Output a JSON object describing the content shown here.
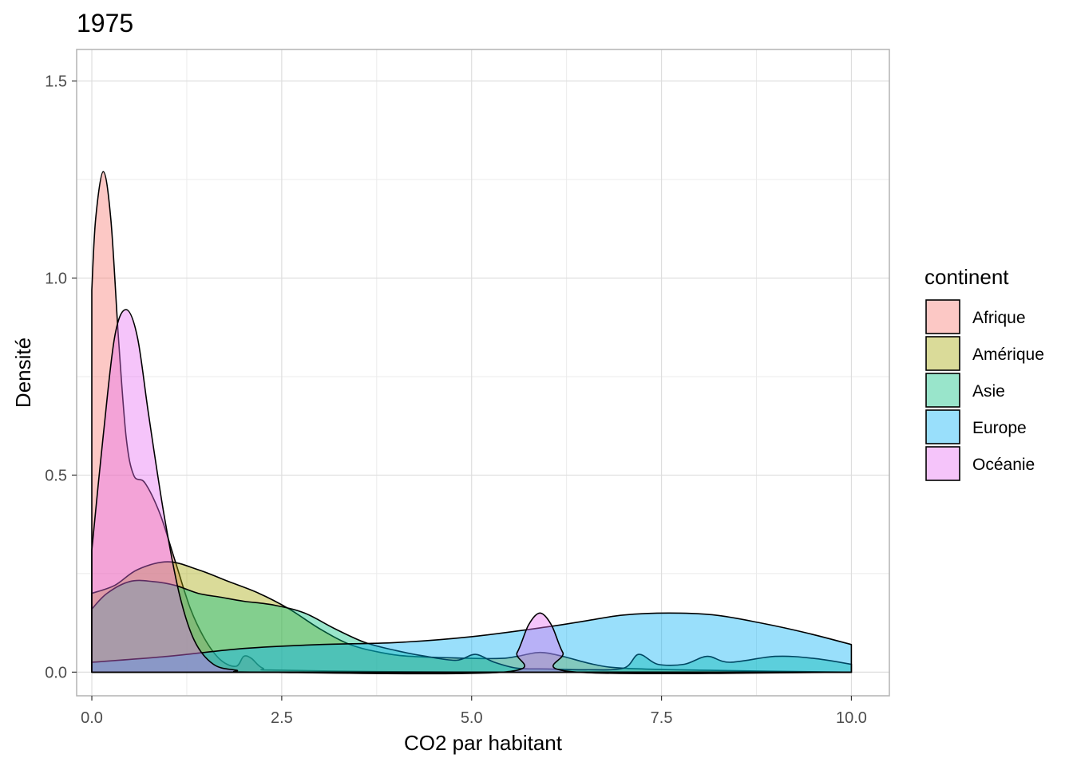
{
  "chart_data": {
    "type": "area",
    "subtype": "density",
    "title": "1975",
    "xlabel": "CO2 par habitant",
    "ylabel": "Densité",
    "xlim": [
      -0.2,
      10.5
    ],
    "ylim": [
      -0.06,
      1.58
    ],
    "x_ticks": [
      0,
      2.5,
      5,
      7.5,
      10
    ],
    "x_tick_labels": [
      "0.0",
      "2.5",
      "5.0",
      "7.5",
      "10.0"
    ],
    "y_ticks": [
      0,
      0.5,
      1,
      1.5
    ],
    "y_tick_labels": [
      "0.0",
      "0.5",
      "1.0",
      "1.5"
    ],
    "grid": true,
    "legend": {
      "title": "continent",
      "position": "right"
    },
    "series": [
      {
        "name": "Afrique",
        "color": "#F8766D",
        "points": [
          [
            0,
            0.97
          ],
          [
            0.05,
            1.15
          ],
          [
            0.15,
            1.27
          ],
          [
            0.25,
            1.15
          ],
          [
            0.35,
            0.85
          ],
          [
            0.45,
            0.6
          ],
          [
            0.55,
            0.5
          ],
          [
            0.7,
            0.48
          ],
          [
            0.9,
            0.4
          ],
          [
            1.1,
            0.28
          ],
          [
            1.3,
            0.16
          ],
          [
            1.5,
            0.08
          ],
          [
            1.7,
            0.03
          ],
          [
            1.9,
            0.015
          ],
          [
            2.0,
            0.04
          ],
          [
            2.1,
            0.035
          ],
          [
            2.25,
            0.01
          ],
          [
            2.5,
            0.005
          ],
          [
            5.0,
            0.0
          ],
          [
            10.0,
            0.0
          ]
        ]
      },
      {
        "name": "Amérique",
        "color": "#A3A500",
        "points": [
          [
            0,
            0.2
          ],
          [
            0.3,
            0.22
          ],
          [
            0.6,
            0.26
          ],
          [
            1.0,
            0.28
          ],
          [
            1.4,
            0.26
          ],
          [
            1.8,
            0.23
          ],
          [
            2.2,
            0.2
          ],
          [
            2.6,
            0.16
          ],
          [
            3.0,
            0.11
          ],
          [
            3.4,
            0.07
          ],
          [
            3.8,
            0.05
          ],
          [
            4.2,
            0.04
          ],
          [
            5.0,
            0.035
          ],
          [
            5.4,
            0.035
          ],
          [
            5.6,
            0.04
          ],
          [
            5.9,
            0.05
          ],
          [
            6.2,
            0.04
          ],
          [
            6.6,
            0.02
          ],
          [
            7.0,
            0.01
          ],
          [
            8.0,
            0.005
          ],
          [
            10.0,
            0.0
          ]
        ]
      },
      {
        "name": "Asie",
        "color": "#00BF7D",
        "points": [
          [
            0,
            0.16
          ],
          [
            0.2,
            0.2
          ],
          [
            0.5,
            0.23
          ],
          [
            0.8,
            0.23
          ],
          [
            1.1,
            0.22
          ],
          [
            1.4,
            0.2
          ],
          [
            1.7,
            0.19
          ],
          [
            2.0,
            0.18
          ],
          [
            2.4,
            0.17
          ],
          [
            2.8,
            0.15
          ],
          [
            3.2,
            0.11
          ],
          [
            3.6,
            0.075
          ],
          [
            4.0,
            0.055
          ],
          [
            4.4,
            0.04
          ],
          [
            4.8,
            0.03
          ],
          [
            5.05,
            0.045
          ],
          [
            5.3,
            0.025
          ],
          [
            5.6,
            0.01
          ],
          [
            6.0,
            0.008
          ],
          [
            6.5,
            0.006
          ],
          [
            7.0,
            0.01
          ],
          [
            7.2,
            0.045
          ],
          [
            7.45,
            0.02
          ],
          [
            7.8,
            0.02
          ],
          [
            8.1,
            0.04
          ],
          [
            8.4,
            0.025
          ],
          [
            9.0,
            0.04
          ],
          [
            9.5,
            0.035
          ],
          [
            10.0,
            0.02
          ]
        ]
      },
      {
        "name": "Europe",
        "color": "#00B0F6",
        "points": [
          [
            0,
            0.025
          ],
          [
            1.0,
            0.04
          ],
          [
            2.0,
            0.06
          ],
          [
            3.0,
            0.07
          ],
          [
            4.0,
            0.075
          ],
          [
            5.0,
            0.09
          ],
          [
            6.0,
            0.115
          ],
          [
            6.5,
            0.13
          ],
          [
            7.0,
            0.145
          ],
          [
            7.6,
            0.15
          ],
          [
            8.2,
            0.145
          ],
          [
            8.8,
            0.125
          ],
          [
            9.4,
            0.1
          ],
          [
            10.0,
            0.07
          ]
        ]
      },
      {
        "name": "Océanie",
        "color": "#E76BF3",
        "points": [
          [
            0,
            0.31
          ],
          [
            0.15,
            0.6
          ],
          [
            0.3,
            0.85
          ],
          [
            0.45,
            0.92
          ],
          [
            0.6,
            0.85
          ],
          [
            0.75,
            0.65
          ],
          [
            0.95,
            0.4
          ],
          [
            1.15,
            0.2
          ],
          [
            1.35,
            0.08
          ],
          [
            1.6,
            0.02
          ],
          [
            1.9,
            0.005
          ],
          [
            2.2,
            0.0
          ],
          [
            5.4,
            0.0
          ],
          [
            5.6,
            0.05
          ],
          [
            5.75,
            0.12
          ],
          [
            5.9,
            0.15
          ],
          [
            6.05,
            0.12
          ],
          [
            6.2,
            0.05
          ],
          [
            6.4,
            0.0
          ],
          [
            10.0,
            0.0
          ]
        ]
      }
    ]
  }
}
